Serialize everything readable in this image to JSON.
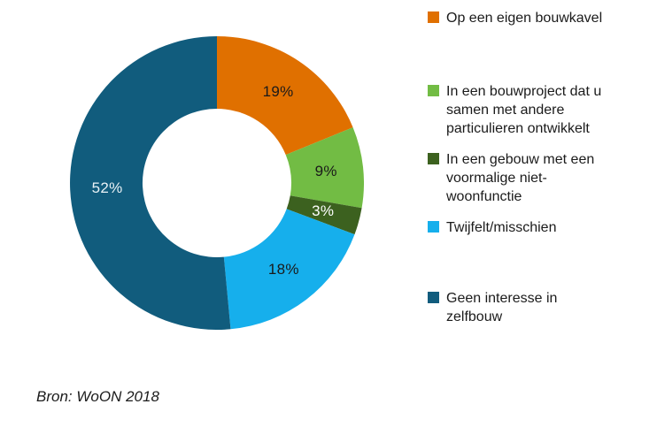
{
  "chart_data": {
    "type": "pie",
    "subtype": "donut",
    "title": "",
    "legend_position": "right",
    "start_angle_deg": 0,
    "direction": "clockwise",
    "segments": [
      {
        "label": "Op een eigen bouwkavel",
        "value": 19,
        "value_label": "19%",
        "color": "#E07000",
        "value_label_color": "#1a1a1a"
      },
      {
        "label": "In een bouwproject dat u\nsamen met andere\nparticulieren ontwikkelt",
        "value": 9,
        "value_label": "9%",
        "color": "#72BC44",
        "value_label_color": "#1a1a1a"
      },
      {
        "label": "In een gebouw met een\nvoormalige niet-\nwoonfunctie",
        "value": 3,
        "value_label": "3%",
        "color": "#3C611F",
        "value_label_color": "#ffffff"
      },
      {
        "label": "Twijfelt/misschien",
        "value": 18,
        "value_label": "18%",
        "color": "#16AFEC",
        "value_label_color": "#1a1a1a"
      },
      {
        "label": "Geen interesse in\nzelfbouw",
        "value": 52,
        "value_label": "52%",
        "color": "#115C7D",
        "value_label_color": "#E9F2F6"
      }
    ]
  },
  "source": {
    "text": "Bron: WoON 2018"
  }
}
